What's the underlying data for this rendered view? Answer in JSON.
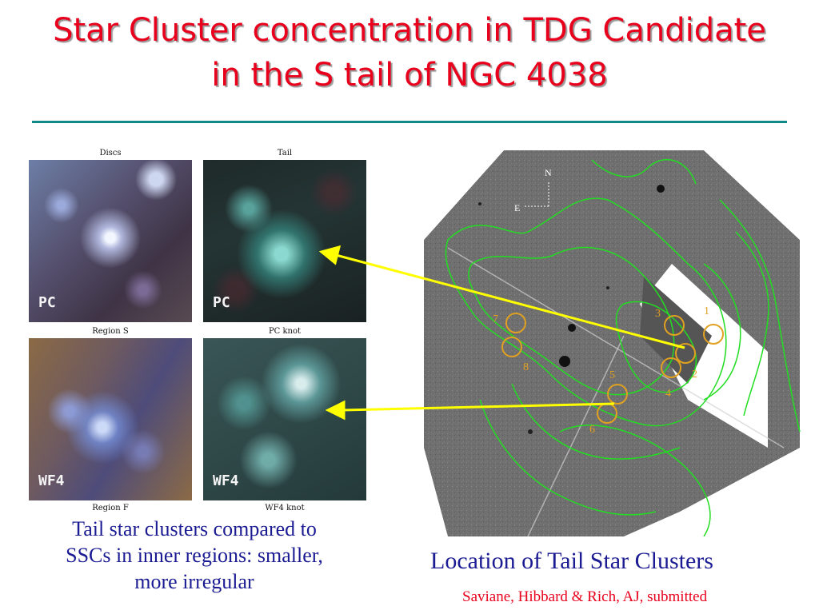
{
  "title": {
    "line1": "Star Cluster concentration in TDG Candidate",
    "line2": "in the S tail of NGC 4038"
  },
  "panels": {
    "discs_label": "Discs",
    "tail_label": "Tail",
    "region_s_label": "Region S",
    "pc_knot_label": "PC knot",
    "region_f_label": "Region F",
    "wf4_knot_label": "WF4 knot",
    "tag_pc": "PC",
    "tag_wf4": "WF4"
  },
  "compass": {
    "north": "N",
    "east": "E"
  },
  "clusters": [
    "1",
    "2",
    "3",
    "4",
    "5",
    "6",
    "7",
    "8"
  ],
  "caption_left": {
    "line1": "Tail star clusters compared to",
    "line2": "SSCs in inner regions: smaller,",
    "line3": "more irregular"
  },
  "location_title": "Location of Tail Star Clusters",
  "citation": "Saviane, Hibbard & Rich, AJ, submitted",
  "colors": {
    "title": "#e8001c",
    "rule": "#0e8a8a",
    "caption": "#1b1b93",
    "arrow": "#ffff00",
    "contour": "#22dd22",
    "cluster_circle": "#e0a020"
  }
}
